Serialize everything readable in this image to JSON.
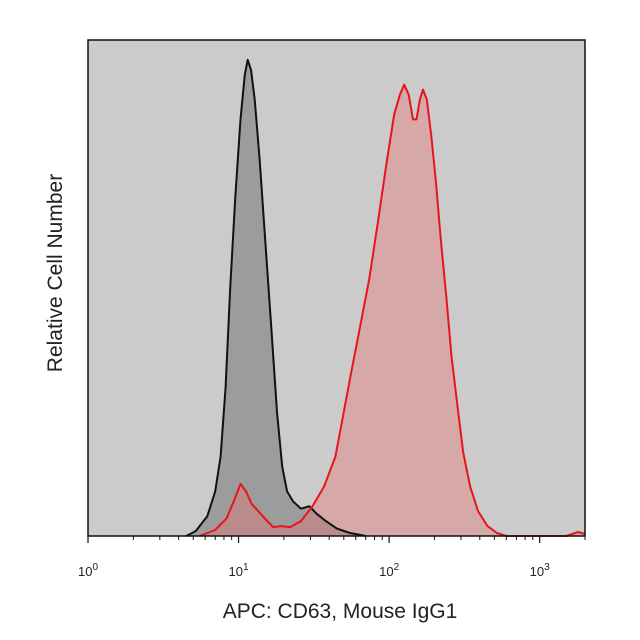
{
  "chart_data": {
    "type": "area",
    "x_scale": "log",
    "xlim": [
      1,
      2000
    ],
    "ylim": [
      0,
      1.0
    ],
    "xlabel": "APC: CD63, Mouse IgG1",
    "ylabel": "Relative Cell Number",
    "x_ticks": [
      {
        "value": 1,
        "base": "10",
        "exp": "0"
      },
      {
        "value": 10,
        "base": "10",
        "exp": "1"
      },
      {
        "value": 100,
        "base": "10",
        "exp": "2"
      },
      {
        "value": 1000,
        "base": "10",
        "exp": "3"
      }
    ],
    "plot_background": "#cbcbcb",
    "grid": false,
    "series": [
      {
        "stroke": "#111111",
        "fill": "#8c8c8c",
        "fill_opacity": 0.75,
        "points": [
          [
            4.5,
            0.0
          ],
          [
            5.2,
            0.01
          ],
          [
            6.2,
            0.04
          ],
          [
            7.0,
            0.09
          ],
          [
            7.6,
            0.16
          ],
          [
            8.2,
            0.3
          ],
          [
            8.8,
            0.5
          ],
          [
            9.5,
            0.68
          ],
          [
            10.3,
            0.84
          ],
          [
            11.0,
            0.93
          ],
          [
            11.5,
            0.96
          ],
          [
            12.1,
            0.94
          ],
          [
            12.8,
            0.88
          ],
          [
            13.8,
            0.76
          ],
          [
            15.0,
            0.6
          ],
          [
            16.5,
            0.42
          ],
          [
            18.0,
            0.25
          ],
          [
            19.5,
            0.14
          ],
          [
            21.0,
            0.09
          ],
          [
            23.0,
            0.07
          ],
          [
            26.0,
            0.055
          ],
          [
            29.5,
            0.06
          ],
          [
            33.0,
            0.045
          ],
          [
            38.0,
            0.03
          ],
          [
            45.0,
            0.015
          ],
          [
            55.0,
            0.006
          ],
          [
            70.0,
            0.0
          ]
        ]
      },
      {
        "stroke": "#e8141c",
        "fill": "#e57373",
        "fill_opacity": 0.4,
        "points": [
          [
            5.5,
            0.0
          ],
          [
            7.0,
            0.012
          ],
          [
            8.3,
            0.035
          ],
          [
            9.3,
            0.07
          ],
          [
            10.3,
            0.105
          ],
          [
            11.2,
            0.09
          ],
          [
            12.2,
            0.065
          ],
          [
            14.0,
            0.045
          ],
          [
            15.5,
            0.03
          ],
          [
            17.0,
            0.018
          ],
          [
            19.0,
            0.02
          ],
          [
            22.0,
            0.018
          ],
          [
            26.0,
            0.03
          ],
          [
            31.0,
            0.06
          ],
          [
            37.0,
            0.1
          ],
          [
            44.0,
            0.16
          ],
          [
            50.0,
            0.25
          ],
          [
            56.0,
            0.33
          ],
          [
            64.0,
            0.42
          ],
          [
            74.0,
            0.52
          ],
          [
            84.0,
            0.63
          ],
          [
            96.0,
            0.75
          ],
          [
            108.0,
            0.85
          ],
          [
            118.0,
            0.89
          ],
          [
            126.0,
            0.91
          ],
          [
            135.0,
            0.89
          ],
          [
            144.0,
            0.84
          ],
          [
            152.0,
            0.84
          ],
          [
            160.0,
            0.88
          ],
          [
            168.0,
            0.9
          ],
          [
            178.0,
            0.88
          ],
          [
            190.0,
            0.81
          ],
          [
            205.0,
            0.71
          ],
          [
            220.0,
            0.6
          ],
          [
            240.0,
            0.48
          ],
          [
            260.0,
            0.36
          ],
          [
            285.0,
            0.26
          ],
          [
            310.0,
            0.17
          ],
          [
            345.0,
            0.1
          ],
          [
            390.0,
            0.05
          ],
          [
            450.0,
            0.02
          ],
          [
            520.0,
            0.006
          ],
          [
            600.0,
            0.0
          ],
          [
            1500.0,
            0.0
          ],
          [
            1800.0,
            0.008
          ],
          [
            2000.0,
            0.004
          ]
        ]
      }
    ]
  }
}
